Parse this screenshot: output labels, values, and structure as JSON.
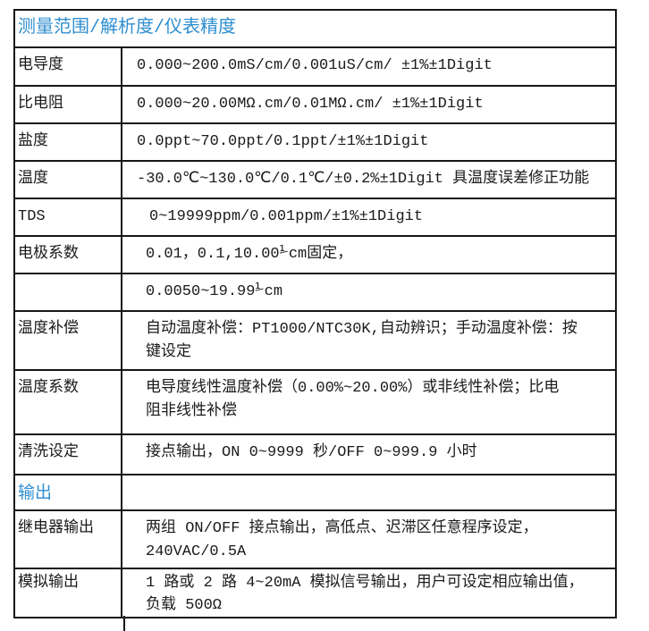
{
  "colors": {
    "section_header": "#2f8ed0",
    "text": "#1a1a1a",
    "border": "#161616",
    "background": "#ffffff"
  },
  "table": {
    "rows": [
      {
        "kind": "section",
        "label": "测量范围/解析度/仪表精度",
        "value": ""
      },
      {
        "kind": "data",
        "label": "电导度",
        "value": "0.000~200.0mS/cm/0.001uS/cm/ ±1%±1Digit"
      },
      {
        "kind": "data",
        "label": "比电阻",
        "value": "0.000~20.00MΩ.cm/0.01MΩ.cm/  ±1%±1Digit"
      },
      {
        "kind": "data",
        "label": "盐度",
        "value": "0.0ppt~70.0ppt/0.1ppt/±1%±1Digit"
      },
      {
        "kind": "data",
        "label": "温度",
        "value": "-30.0℃~130.0℃/0.1℃/±0.2%±1Digit 具温度误差修正功能"
      },
      {
        "kind": "data",
        "label": "TDS",
        "value": "0~19999ppm/0.001ppm/±1%±1Digit"
      },
      {
        "kind": "data",
        "label": "电极系数",
        "value": "0.01，0.1,10.00⅟cm固定，"
      },
      {
        "kind": "data",
        "label": "",
        "value": "0.0050~19.99⅟cm"
      },
      {
        "kind": "data",
        "label": "温度补偿",
        "value": "自动温度补偿：PT1000/NTC30K,自动辨识；手动温度补偿：按\n键设定"
      },
      {
        "kind": "data",
        "label": "温度系数",
        "value": "电导度线性温度补偿（0.00%~20.00%）或非线性补偿；比电\n阻非线性补偿"
      },
      {
        "kind": "data",
        "label": "清洗设定",
        "value": "接点输出，ON 0~9999 秒/OFF 0~999.9 小时"
      },
      {
        "kind": "section-inline",
        "label": "输出",
        "value": ""
      },
      {
        "kind": "data",
        "label": "继电器输出",
        "value": "两组 ON/OFF 接点输出，高低点、迟滞区任意程序设定，\n240VAC/0.5A"
      },
      {
        "kind": "data",
        "label": "模拟输出",
        "value": "1 路或 2 路 4~20mA 模拟信号输出，用户可设定相应输出值，\n负载 500Ω"
      }
    ]
  }
}
